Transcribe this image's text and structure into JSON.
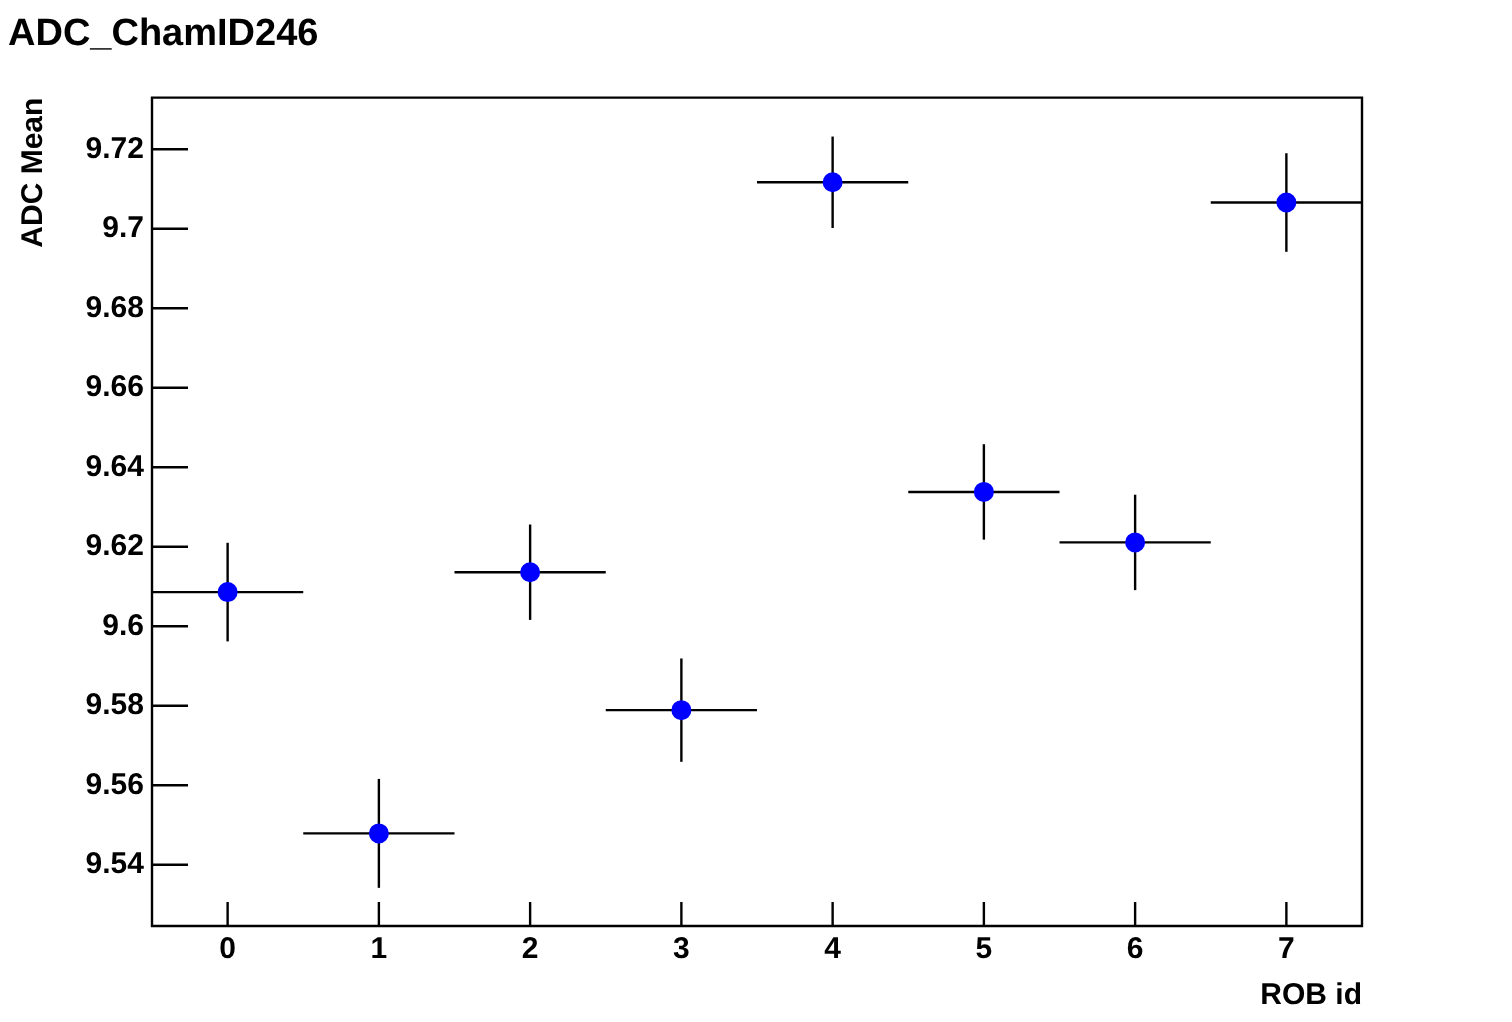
{
  "chart_data": {
    "type": "scatter",
    "title": "ADC_ChamID246",
    "xlabel": "ROB id",
    "ylabel": "ADC Mean",
    "x": [
      0,
      1,
      2,
      3,
      4,
      5,
      6,
      7
    ],
    "series": [
      {
        "color": "#0000ff",
        "values": [
          9.6086,
          9.5479,
          9.6136,
          9.5789,
          9.7117,
          9.6338,
          9.6211,
          9.7066
        ],
        "errors": [
          0.0124,
          0.0137,
          0.012,
          0.013,
          0.0115,
          0.012,
          0.012,
          0.0124
        ],
        "xerrors": [
          0.5,
          0.5,
          0.5,
          0.5,
          0.5,
          0.5,
          0.5,
          0.5
        ]
      }
    ],
    "xlim": [
      -0.5,
      7.5
    ],
    "xticks": [
      0,
      1,
      2,
      3,
      4,
      5,
      6,
      7
    ],
    "ylim": [
      9.5246,
      9.733
    ],
    "yticks": [
      9.54,
      9.56,
      9.58,
      9.6,
      9.62,
      9.64,
      9.66,
      9.68,
      9.7,
      9.72
    ],
    "grid": false,
    "legend": false,
    "marker": "circle"
  }
}
